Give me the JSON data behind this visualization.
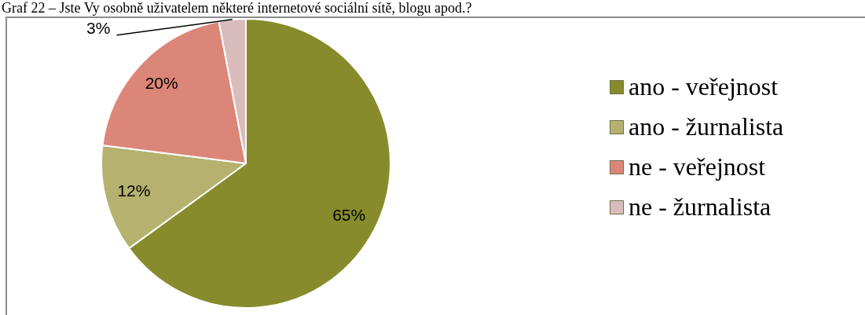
{
  "chart_data": {
    "type": "pie",
    "title": "Graf 22 – Jste Vy osobně uživatelem některé internetové sociální sítě, blogu apod.?",
    "categories": [
      "ano - veřejnost",
      "ano - žurnalista",
      "ne - veřejnost",
      "ne - žurnalista"
    ],
    "values": [
      65,
      12,
      20,
      3
    ],
    "value_labels": [
      "65%",
      "12%",
      "20%",
      "3%"
    ],
    "colors": [
      "#878b2b",
      "#b4b26e",
      "#dc8679",
      "#d9bcbc"
    ],
    "legend": "right"
  }
}
